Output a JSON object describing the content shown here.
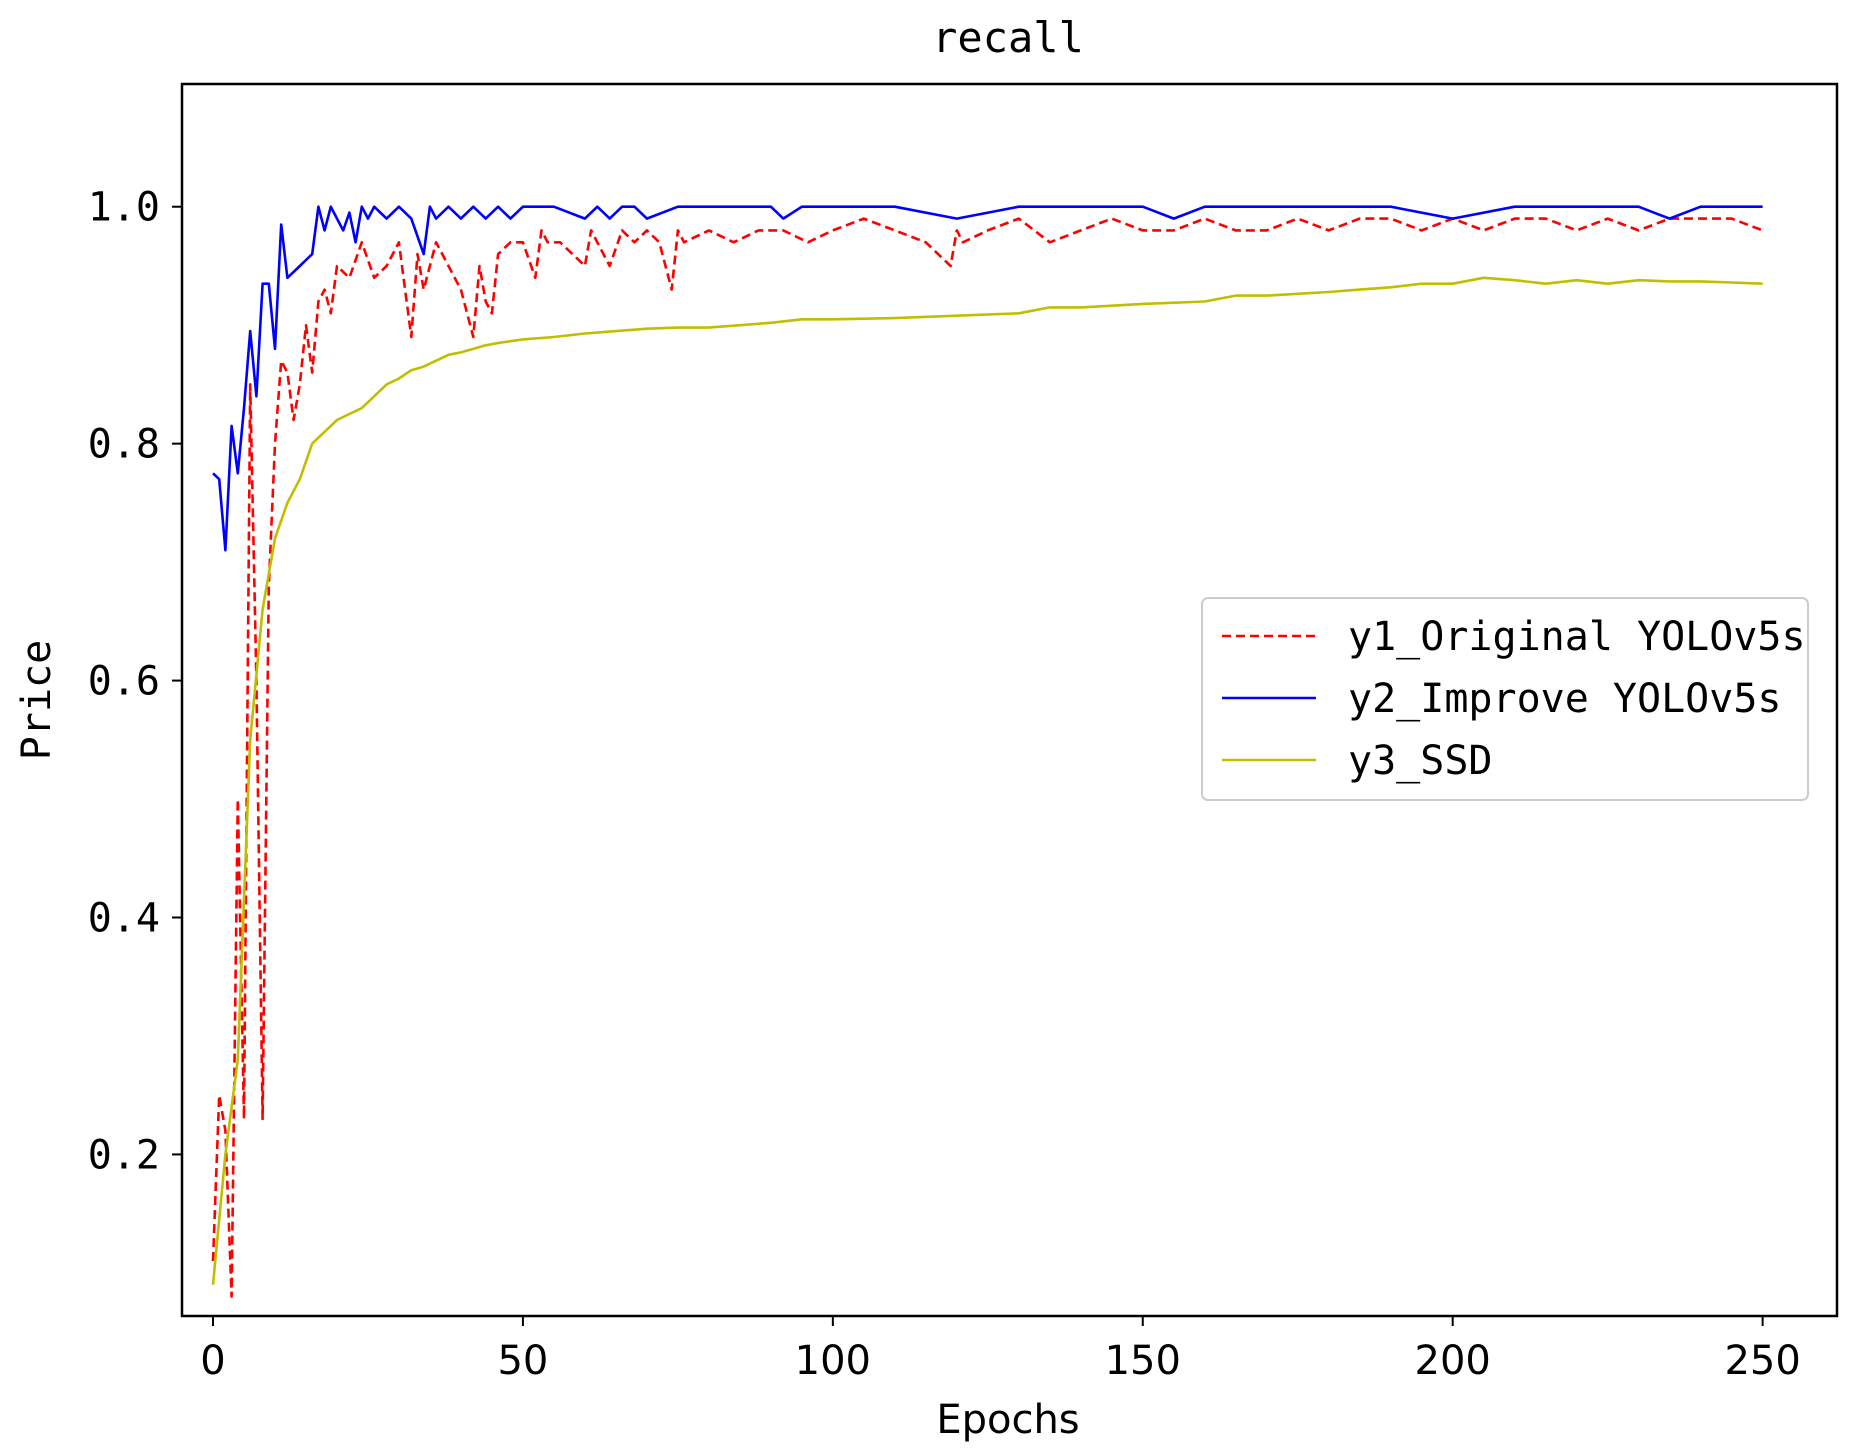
{
  "chart_data": {
    "type": "line",
    "title": "recall",
    "xlabel": "Epochs",
    "ylabel": "Price",
    "xlim": [
      -5,
      262
    ],
    "ylim": [
      0.0636,
      1.1036
    ],
    "xticks": [
      0,
      50,
      100,
      150,
      200,
      250
    ],
    "xtick_labels": [
      "0",
      "50",
      "100",
      "150",
      "200",
      "250"
    ],
    "yticks": [
      0.2,
      0.4,
      0.6,
      0.8,
      1.0
    ],
    "ytick_labels": [
      "0.2",
      "0.4",
      "0.6",
      "0.8",
      "1.0"
    ],
    "grid": false,
    "legend_position": "center-right",
    "series": [
      {
        "name": "y1_Original YOLOv5s",
        "color": "#ff0000",
        "style": "dashed",
        "x": [
          0,
          1,
          2,
          3,
          4,
          5,
          6,
          7,
          8,
          9,
          10,
          11,
          12,
          13,
          14,
          15,
          16,
          17,
          18,
          19,
          20,
          22,
          24,
          26,
          28,
          30,
          32,
          33,
          34,
          36,
          38,
          40,
          42,
          43,
          44,
          45,
          46,
          48,
          50,
          52,
          53,
          54,
          56,
          58,
          60,
          61,
          62,
          64,
          66,
          68,
          70,
          72,
          74,
          75,
          76,
          80,
          84,
          88,
          92,
          96,
          100,
          105,
          110,
          115,
          119,
          120,
          121,
          125,
          130,
          135,
          140,
          145,
          150,
          155,
          160,
          165,
          170,
          175,
          180,
          185,
          190,
          195,
          200,
          205,
          210,
          215,
          220,
          225,
          230,
          235,
          240,
          245,
          250
        ],
        "y": [
          0.11,
          0.25,
          0.22,
          0.08,
          0.5,
          0.23,
          0.85,
          0.6,
          0.23,
          0.68,
          0.8,
          0.87,
          0.86,
          0.82,
          0.85,
          0.9,
          0.86,
          0.92,
          0.93,
          0.91,
          0.95,
          0.94,
          0.97,
          0.94,
          0.95,
          0.97,
          0.89,
          0.96,
          0.93,
          0.97,
          0.95,
          0.93,
          0.89,
          0.95,
          0.92,
          0.91,
          0.96,
          0.97,
          0.97,
          0.94,
          0.98,
          0.97,
          0.97,
          0.96,
          0.95,
          0.98,
          0.97,
          0.95,
          0.98,
          0.97,
          0.98,
          0.97,
          0.93,
          0.98,
          0.97,
          0.98,
          0.97,
          0.98,
          0.98,
          0.97,
          0.98,
          0.99,
          0.98,
          0.97,
          0.95,
          0.98,
          0.97,
          0.98,
          0.99,
          0.97,
          0.98,
          0.99,
          0.98,
          0.98,
          0.99,
          0.98,
          0.98,
          0.99,
          0.98,
          0.99,
          0.99,
          0.98,
          0.99,
          0.98,
          0.99,
          0.99,
          0.98,
          0.99,
          0.98,
          0.99,
          0.99,
          0.99,
          0.98
        ]
      },
      {
        "name": "y2_Improve YOLOv5s",
        "color": "#0000ff",
        "style": "solid",
        "x": [
          0,
          1,
          2,
          3,
          4,
          5,
          6,
          7,
          8,
          9,
          10,
          11,
          12,
          13,
          14,
          15,
          16,
          17,
          18,
          19,
          20,
          21,
          22,
          23,
          24,
          25,
          26,
          28,
          30,
          32,
          34,
          35,
          36,
          38,
          40,
          42,
          44,
          46,
          48,
          50,
          55,
          60,
          62,
          64,
          66,
          68,
          70,
          75,
          80,
          90,
          92,
          95,
          100,
          110,
          120,
          130,
          140,
          150,
          155,
          160,
          170,
          180,
          190,
          200,
          210,
          220,
          230,
          235,
          240,
          245,
          250
        ],
        "y": [
          0.775,
          0.77,
          0.71,
          0.815,
          0.775,
          0.83,
          0.895,
          0.84,
          0.935,
          0.935,
          0.88,
          0.985,
          0.94,
          0.945,
          0.95,
          0.955,
          0.96,
          1.0,
          0.98,
          1.0,
          0.99,
          0.98,
          0.995,
          0.97,
          1.0,
          0.99,
          1.0,
          0.99,
          1.0,
          0.99,
          0.96,
          1.0,
          0.99,
          1.0,
          0.99,
          1.0,
          0.99,
          1.0,
          0.99,
          1.0,
          1.0,
          0.99,
          1.0,
          0.99,
          1.0,
          1.0,
          0.99,
          1.0,
          1.0,
          1.0,
          0.99,
          1.0,
          1.0,
          1.0,
          0.99,
          1.0,
          1.0,
          1.0,
          0.99,
          1.0,
          1.0,
          1.0,
          1.0,
          0.99,
          1.0,
          1.0,
          1.0,
          0.99,
          1.0,
          1.0,
          1.0
        ]
      },
      {
        "name": "y3_SSD",
        "color": "#bfbf00",
        "style": "solid",
        "x": [
          0,
          2,
          4,
          6,
          8,
          10,
          12,
          14,
          16,
          18,
          20,
          22,
          24,
          26,
          28,
          30,
          32,
          34,
          36,
          38,
          40,
          42,
          44,
          46,
          50,
          55,
          60,
          65,
          70,
          75,
          80,
          85,
          90,
          95,
          100,
          110,
          120,
          130,
          135,
          140,
          150,
          160,
          165,
          170,
          180,
          185,
          190,
          195,
          200,
          205,
          210,
          215,
          220,
          225,
          230,
          235,
          240,
          245,
          250
        ],
        "y": [
          0.09,
          0.2,
          0.28,
          0.55,
          0.66,
          0.72,
          0.75,
          0.77,
          0.8,
          0.81,
          0.82,
          0.825,
          0.83,
          0.84,
          0.85,
          0.855,
          0.862,
          0.865,
          0.87,
          0.875,
          0.877,
          0.88,
          0.883,
          0.885,
          0.888,
          0.89,
          0.893,
          0.895,
          0.897,
          0.898,
          0.898,
          0.9,
          0.902,
          0.905,
          0.905,
          0.906,
          0.908,
          0.91,
          0.915,
          0.915,
          0.918,
          0.92,
          0.925,
          0.925,
          0.928,
          0.93,
          0.932,
          0.935,
          0.935,
          0.94,
          0.938,
          0.935,
          0.938,
          0.935,
          0.938,
          0.937,
          0.937,
          0.936,
          0.935
        ]
      }
    ]
  }
}
